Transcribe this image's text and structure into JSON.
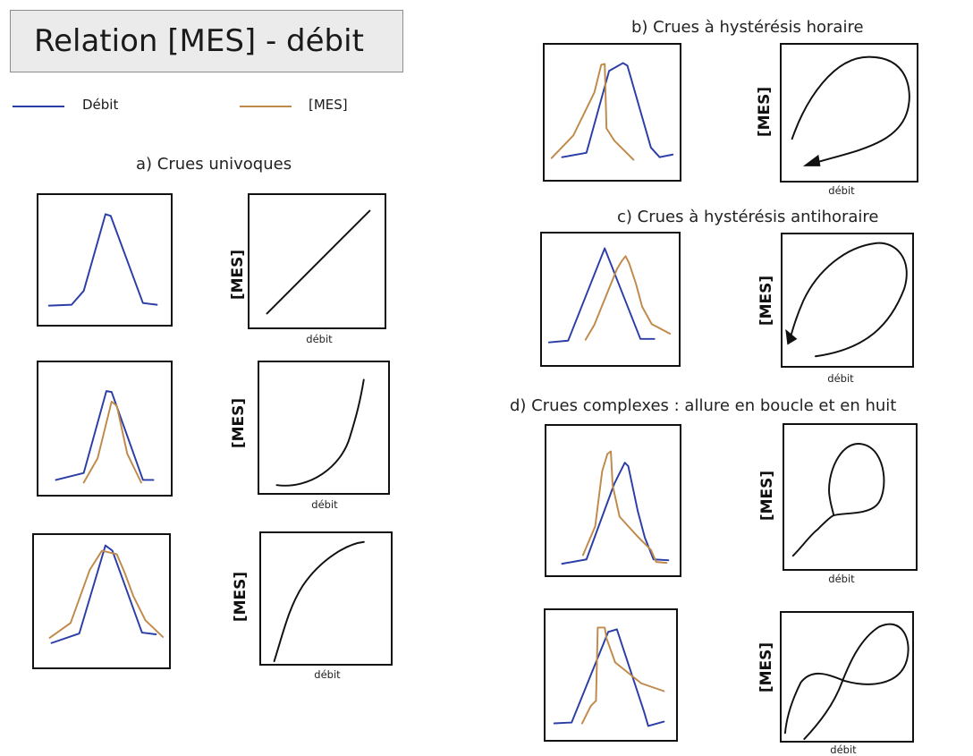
{
  "title": "Relation [MES] - débit",
  "legend": {
    "discharge": {
      "label": "Débit",
      "color": "#2b3da6"
    },
    "concentration": {
      "label": "[MES]",
      "color": "#c08a4a"
    }
  },
  "sections": {
    "a": "a) Crues univoques",
    "b": "b) Crues à hystérésis horaire",
    "c": "c) Crues à hystérésis antihoraire",
    "d": "d) Crues complexes : allure en  boucle et en huit"
  },
  "axes": {
    "x_label": "débit",
    "y_label": "[MES]"
  },
  "colors": {
    "discharge": "#2b3da6",
    "concentration": "#c08a4a",
    "relation": "#111111",
    "title_box_bg": "#ebebeb"
  }
}
